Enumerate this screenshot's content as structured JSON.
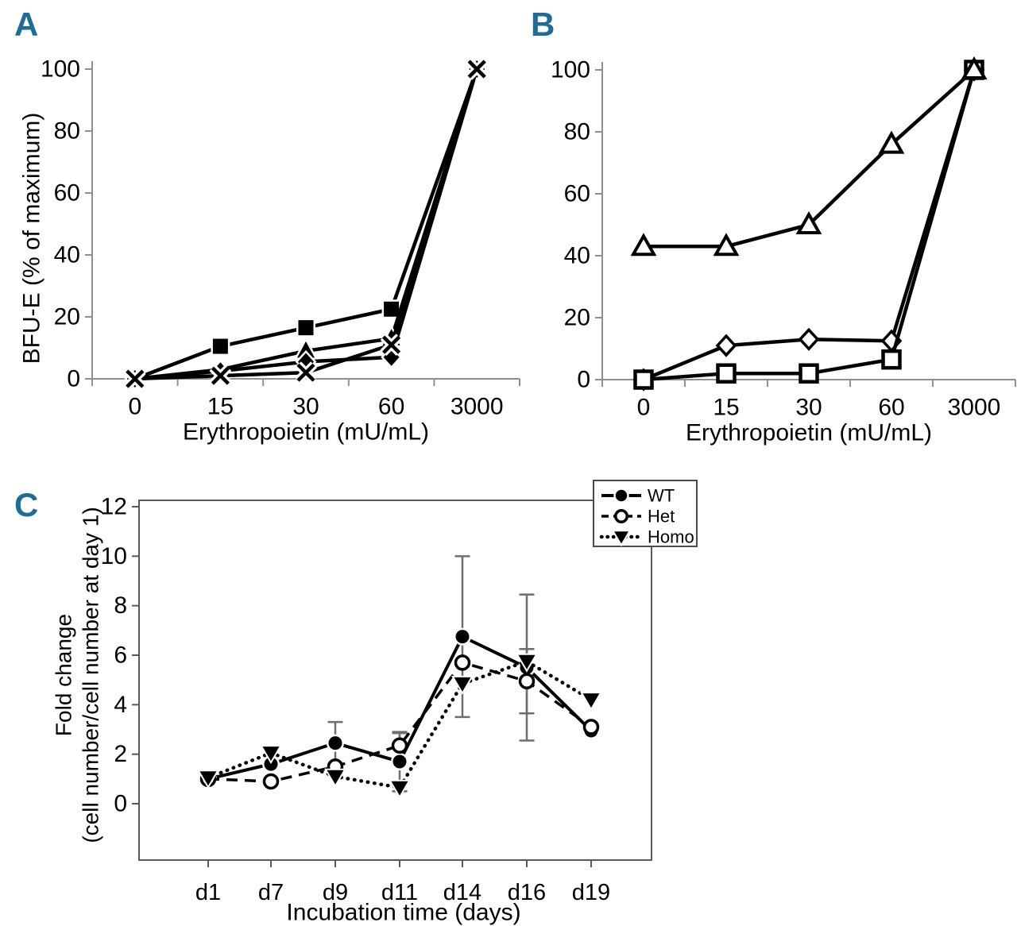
{
  "figure": {
    "description_visible_text_only": true,
    "panel_letter_color": "#1d6d95",
    "axis_color_ab": "#8f8f8f",
    "axis_color_c": "#595959",
    "error_bar_color": "#6e6e6e",
    "series_color": "#000000"
  },
  "chart_data": [
    {
      "panel_label": "A",
      "type": "line",
      "title": "",
      "xlabel": "Erythropoietin (mU/mL)",
      "ylabel": "BFU-E (% of maximum)",
      "x_categories": [
        "0",
        "15",
        "30",
        "60",
        "3000"
      ],
      "yticks": [
        0,
        20,
        40,
        60,
        80,
        100
      ],
      "ylim": [
        0,
        100
      ],
      "grid": false,
      "legend_position": "none",
      "series": [
        {
          "name": "filled-square",
          "marker": "square-filled",
          "line": "solid",
          "values": [
            0,
            10.5,
            16.5,
            22.5,
            100
          ]
        },
        {
          "name": "filled-triangle",
          "marker": "triangle-filled",
          "line": "solid",
          "values": [
            0,
            3,
            9,
            13,
            100
          ]
        },
        {
          "name": "filled-diamond",
          "marker": "diamond-filled",
          "line": "solid",
          "values": [
            0,
            2.5,
            5.5,
            7,
            100
          ]
        },
        {
          "name": "x-cross",
          "marker": "x-cross",
          "line": "solid",
          "values": [
            0,
            1,
            2,
            11,
            100
          ]
        }
      ]
    },
    {
      "panel_label": "B",
      "type": "line",
      "title": "",
      "xlabel": "Erythropoietin (mU/mL)",
      "ylabel": "",
      "x_categories": [
        "0",
        "15",
        "30",
        "60",
        "3000"
      ],
      "yticks": [
        0,
        20,
        40,
        60,
        80,
        100
      ],
      "ylim": [
        0,
        100
      ],
      "grid": false,
      "legend_position": "none",
      "series": [
        {
          "name": "open-diamond",
          "marker": "diamond-open",
          "line": "solid",
          "values": [
            0,
            11,
            13,
            12.5,
            100
          ]
        },
        {
          "name": "open-square",
          "marker": "square-open",
          "line": "solid",
          "values": [
            0,
            2,
            2,
            6.5,
            100
          ]
        },
        {
          "name": "open-triangle",
          "marker": "triangle-open",
          "line": "solid",
          "values": [
            43,
            43,
            50,
            76,
            100
          ]
        }
      ]
    },
    {
      "panel_label": "C",
      "type": "line",
      "title": "",
      "xlabel": "Incubation time (days)",
      "ylabel_lines": [
        "Fold change",
        "(cell number/cell number at day 1)"
      ],
      "x_categories": [
        "d1",
        "d7",
        "d9",
        "d11",
        "d14",
        "d16",
        "d19"
      ],
      "yticks": [
        0,
        2,
        4,
        6,
        8,
        10,
        12
      ],
      "ylim": [
        0,
        12
      ],
      "grid": false,
      "legend_position": "top-right",
      "series": [
        {
          "name": "WT",
          "marker": "circle-filled",
          "line": "solid",
          "values": [
            1.0,
            1.6,
            2.45,
            1.7,
            6.75,
            5.5,
            2.95
          ],
          "errors": [
            0,
            0,
            0.85,
            1.2,
            3.25,
            2.95,
            0
          ]
        },
        {
          "name": "Het",
          "marker": "circle-open",
          "line": "dashed",
          "values": [
            1.0,
            0.9,
            1.5,
            2.35,
            5.7,
            4.95,
            3.1
          ],
          "errors": [
            0,
            0,
            0,
            0.5,
            0,
            1.3,
            0
          ]
        },
        {
          "name": "Homo",
          "marker": "triangle-down-filled",
          "line": "dotted",
          "values": [
            1.05,
            2.05,
            1.1,
            0.65,
            4.85,
            5.75,
            4.2
          ],
          "errors": [
            0,
            0,
            0,
            0.15,
            0,
            0,
            0
          ]
        }
      ]
    }
  ]
}
